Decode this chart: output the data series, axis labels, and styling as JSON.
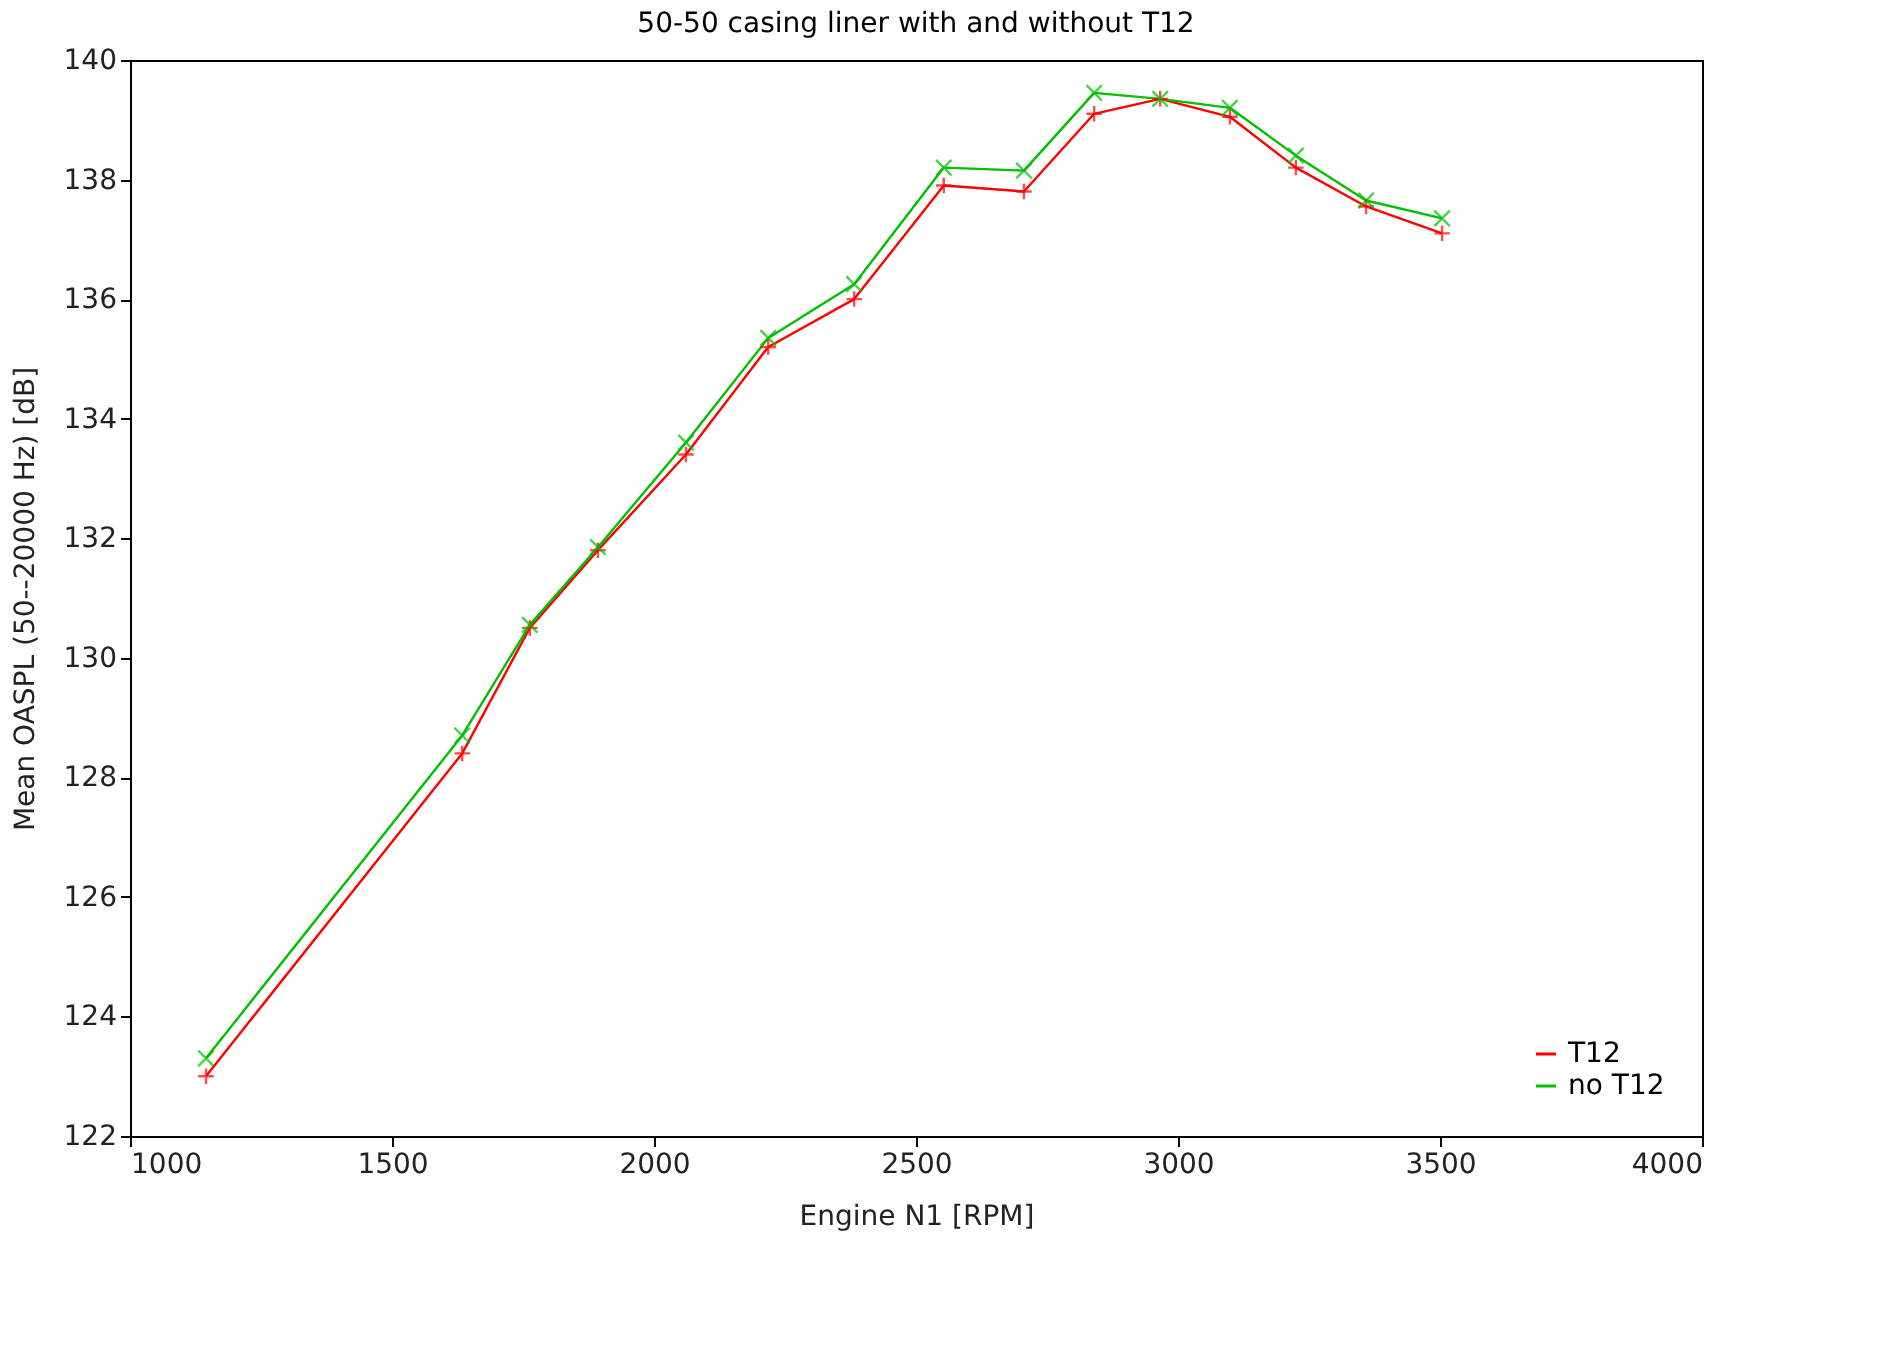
{
  "chart_data": {
    "type": "line",
    "title": "50-50 casing liner with and without T12",
    "xlabel": "Engine N1 [RPM]",
    "ylabel": "Mean OASPL (50--20000 Hz) [dB]",
    "x": [
      1145,
      1634,
      1763,
      1893,
      2061,
      2218,
      2382,
      2553,
      2706,
      2840,
      2966,
      3099,
      3225,
      3359,
      3504
    ],
    "series": [
      {
        "name": "T12",
        "color": "#ff0000",
        "values": [
          123.0,
          128.4,
          130.5,
          131.8,
          133.4,
          135.2,
          136.0,
          137.9,
          137.8,
          139.1,
          139.35,
          139.05,
          138.2,
          137.55,
          137.1
        ]
      },
      {
        "name": "no T12",
        "color": "#00c000",
        "values": [
          123.3,
          128.7,
          130.55,
          131.85,
          133.6,
          135.35,
          136.25,
          138.2,
          138.15,
          139.45,
          139.35,
          139.2,
          138.4,
          137.65,
          137.35
        ]
      }
    ],
    "xlim": [
      1000,
      4000
    ],
    "xticks": [
      1000,
      1500,
      2000,
      2500,
      3000,
      3500,
      4000
    ],
    "ylim": [
      122,
      140
    ],
    "yticks": [
      122,
      124,
      126,
      128,
      130,
      132,
      134,
      136,
      138,
      140
    ],
    "grid": false,
    "legend": "bottom right",
    "marker": "cross",
    "line_style": "solid"
  }
}
